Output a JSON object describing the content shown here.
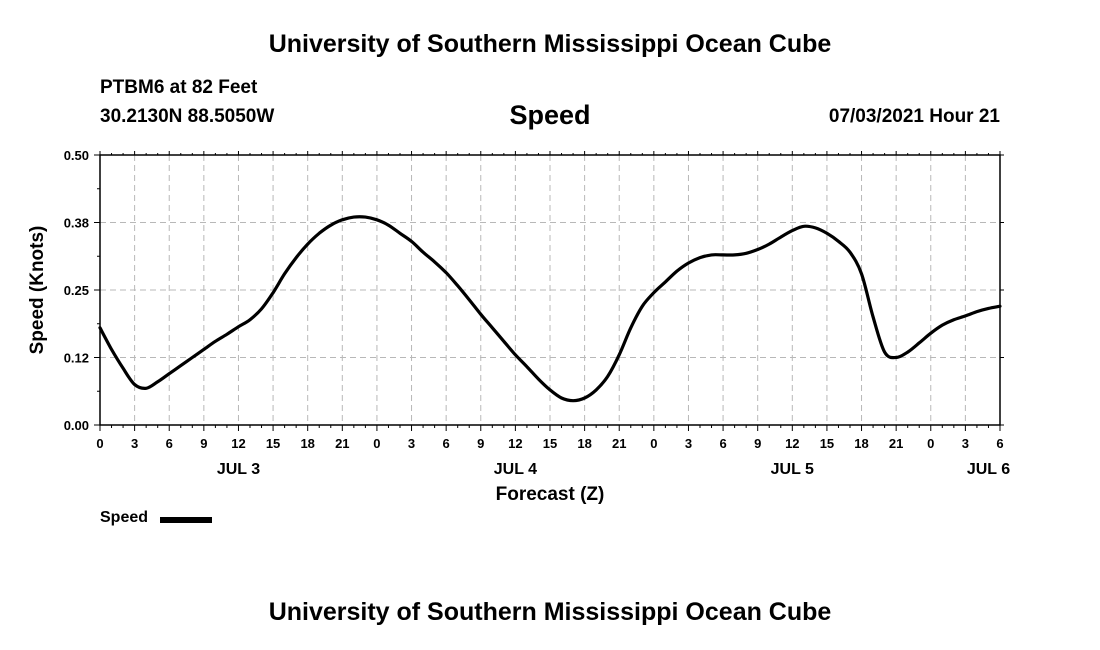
{
  "header": {
    "title": "University of Southern Mississippi Ocean Cube",
    "station": "PTBM6 at 82 Feet",
    "coords": "30.2130N  88.5050W",
    "timestamp": "07/03/2021 Hour 21"
  },
  "footer": {
    "title": "University of Southern Mississippi Ocean Cube"
  },
  "legend": {
    "label": "Speed",
    "placement": "bottom-left"
  },
  "chart_data": {
    "type": "line",
    "title": "Speed",
    "xlabel": "Forecast (Z)",
    "ylabel": "Speed (Knots)",
    "xlim": [
      0,
      78
    ],
    "ylim": [
      0,
      0.5
    ],
    "grid": true,
    "line_color": "#000000",
    "x_tick_values": [
      0,
      3,
      6,
      9,
      12,
      15,
      18,
      21,
      24,
      27,
      30,
      33,
      36,
      39,
      42,
      45,
      48,
      51,
      54,
      57,
      60,
      63,
      66,
      69,
      72,
      75,
      78
    ],
    "x_tick_labels": [
      "0",
      "3",
      "6",
      "9",
      "12",
      "15",
      "18",
      "21",
      "0",
      "3",
      "6",
      "9",
      "12",
      "15",
      "18",
      "21",
      "0",
      "3",
      "6",
      "9",
      "12",
      "15",
      "18",
      "21",
      "0",
      "3",
      "6"
    ],
    "y_tick_values": [
      0,
      0.125,
      0.25,
      0.375,
      0.5
    ],
    "y_tick_labels": [
      "0.00",
      "0.12",
      "0.25",
      "0.38",
      "0.50"
    ],
    "day_labels": [
      {
        "label": "JUL 3",
        "x": 12
      },
      {
        "label": "JUL 4",
        "x": 36
      },
      {
        "label": "JUL 5",
        "x": 60
      },
      {
        "label": "JUL 6",
        "x": 77
      }
    ],
    "series": [
      {
        "name": "Speed",
        "x": [
          0,
          1,
          2,
          3,
          4,
          5,
          6,
          7,
          8,
          9,
          10,
          11,
          12,
          13,
          14,
          15,
          16,
          17,
          18,
          19,
          20,
          21,
          22,
          23,
          24,
          25,
          26,
          27,
          28,
          29,
          30,
          31,
          32,
          33,
          34,
          35,
          36,
          37,
          38,
          39,
          40,
          41,
          42,
          43,
          44,
          45,
          46,
          47,
          48,
          49,
          50,
          51,
          52,
          53,
          54,
          55,
          56,
          57,
          58,
          59,
          60,
          61,
          62,
          63,
          64,
          65,
          66,
          67,
          68,
          69,
          70,
          71,
          72,
          73,
          74,
          75,
          76,
          77,
          78
        ],
        "values": [
          0.18,
          0.14,
          0.105,
          0.075,
          0.068,
          0.08,
          0.095,
          0.11,
          0.125,
          0.14,
          0.155,
          0.168,
          0.182,
          0.195,
          0.215,
          0.245,
          0.28,
          0.31,
          0.335,
          0.355,
          0.37,
          0.38,
          0.385,
          0.385,
          0.38,
          0.37,
          0.355,
          0.34,
          0.32,
          0.302,
          0.282,
          0.258,
          0.232,
          0.205,
          0.18,
          0.155,
          0.13,
          0.108,
          0.085,
          0.065,
          0.05,
          0.045,
          0.05,
          0.065,
          0.09,
          0.13,
          0.18,
          0.22,
          0.245,
          0.265,
          0.285,
          0.3,
          0.31,
          0.315,
          0.315,
          0.315,
          0.318,
          0.325,
          0.335,
          0.348,
          0.36,
          0.368,
          0.365,
          0.355,
          0.34,
          0.32,
          0.28,
          0.2,
          0.135,
          0.125,
          0.135,
          0.152,
          0.17,
          0.185,
          0.195,
          0.202,
          0.21,
          0.216,
          0.22
        ]
      }
    ]
  }
}
